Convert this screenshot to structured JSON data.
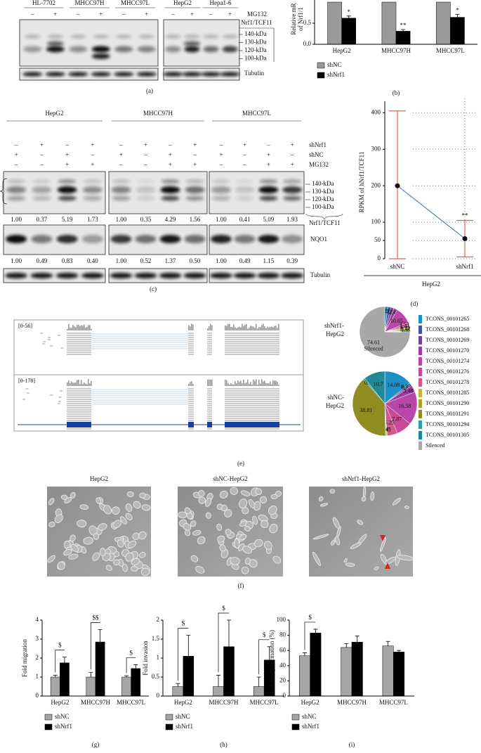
{
  "panel_a": {
    "cell_lines": [
      "HL-7702",
      "MHCC97H",
      "MHCC97L",
      "HepG2",
      "Hepa1-6"
    ],
    "mg132_signs": [
      "–",
      "+",
      "–",
      "+",
      "–",
      "+",
      "–",
      "+",
      "–",
      "+"
    ],
    "mg132_label": "MG132",
    "protein": "Nrf1/TCF11",
    "sizes": [
      "140-kDa",
      "130-kDa",
      "120-kDa",
      "100-kDa"
    ],
    "loading": "Tubulin",
    "panel": "(a)"
  },
  "panel_c": {
    "groups": [
      "HepG2",
      "MHCC97H",
      "MHCC97L"
    ],
    "rows": [
      {
        "label": "shNrf1",
        "signs": [
          "–",
          "+",
          "–",
          "+",
          "–",
          "+",
          "–",
          "+",
          "–",
          "+",
          "–",
          "+"
        ]
      },
      {
        "label": "shNC",
        "signs": [
          "+",
          "–",
          "+",
          "–",
          "+",
          "–",
          "+",
          "–",
          "+",
          "–",
          "+",
          "–"
        ]
      },
      {
        "label": "MG132",
        "signs": [
          "–",
          "–",
          "+",
          "+",
          "–",
          "–",
          "+",
          "+",
          "–",
          "–",
          "+",
          "+"
        ]
      }
    ],
    "protein": "Nrf1/TCF11",
    "sizes": [
      "140-kDa",
      "130-kDa",
      "120-kDa",
      "100-kDa"
    ],
    "protein_values": [
      "1.00",
      "0.37",
      "5.19",
      "1.73",
      "1.00",
      "0.35",
      "4.29",
      "1.56",
      "1.00",
      "0.41",
      "5.09",
      "1.93"
    ],
    "second_protein": "NQO1",
    "second_values": [
      "1.00",
      "0.49",
      "0.83",
      "0.40",
      "1.00",
      "0.52",
      "1.37",
      "0.50",
      "1.00",
      "0.49",
      "1.15",
      "0.39"
    ],
    "loading": "Tubulin",
    "panel": "(c)"
  },
  "panel_d": {
    "panel": "(d)"
  },
  "panel_e": {
    "tracks": [
      "[0-56]",
      "[0-178]"
    ],
    "panel": "(e)"
  },
  "panel_f": {
    "images": [
      "HepG2",
      "shNC-HepG2",
      "shNrf1-HepG2"
    ],
    "panel": "(f)"
  },
  "chart_data": [
    {
      "type": "bar",
      "panel": "(b)",
      "ylabel": [
        "Relative mR",
        "of Nrf1/1"
      ],
      "categories": [
        "HepG2",
        "MHCC97H",
        "MHCC97L"
      ],
      "series": [
        {
          "name": "shNC",
          "color": "#9a9a9a",
          "values": [
            1.0,
            1.0,
            1.0
          ]
        },
        {
          "name": "shNrf1",
          "color": "#000000",
          "values": [
            0.62,
            0.31,
            0.64
          ],
          "errors": [
            0.05,
            0.04,
            0.07
          ],
          "annotations": [
            "*",
            "**",
            "*"
          ]
        }
      ],
      "ylim": [
        0,
        1.2
      ],
      "yticks": [
        {
          "value": 0,
          "label": "0.0"
        },
        0.5
      ],
      "legend": "bottom-left"
    },
    {
      "type": "dot",
      "ylabel": "RPKM of hNrf1/TCF11",
      "categories": [
        "shNC",
        "shNrf1"
      ],
      "group": "HepG2",
      "values": [
        200,
        55
      ],
      "errors": [
        205,
        50
      ],
      "color": "#4a6fc4",
      "error_color": "#e06060",
      "annotations": [
        null,
        "**"
      ],
      "ylim": [
        0,
        420
      ],
      "yticks": [
        0,
        50,
        100,
        200,
        300,
        400
      ],
      "grid": true
    },
    {
      "type": "pie",
      "categories": [
        "TCONS_00101265",
        "TCONS_00101268",
        "TCONS_00101269",
        "TCONS_00101270",
        "TCONS_00101274",
        "TCONS_00101276",
        "TCONS_00101278",
        "TCONS_00101285",
        "TCONS_00101290",
        "TCONS_00101291",
        "TCONS_00101294",
        "TCONS_00101305",
        "Silenced"
      ],
      "colors": [
        "#1e90c8",
        "#4b4fa8",
        "#7a3fa0",
        "#9b3d9e",
        "#b847a8",
        "#c94a96",
        "#d05a8c",
        "#c7b43a",
        "#a8a22a",
        "#8f8c22",
        "#2aa0a8",
        "#1f8a96",
        "#a8a8a8"
      ],
      "series": [
        {
          "name": [
            "shNrf1-",
            "HepG2"
          ],
          "values": [
            1.95,
            2.01,
            1.85,
            2.45,
            10.65,
            1.52,
            1.41,
            0.92,
            0.77,
            0.91,
            0.45,
            0.5,
            74.61
          ]
        },
        {
          "name": [
            "shNC-",
            "HepG2"
          ],
          "values": [
            14.08,
            0.73,
            0.84,
            3.48,
            16.58,
            7.87,
            5.25,
            0.41,
            0.45,
            38.81,
            0.8,
            10.7,
            0
          ]
        }
      ]
    },
    {
      "type": "bar",
      "panel": "(g)",
      "ylabel": "Fold migration",
      "categories": [
        "HepG2",
        "MHCC97H",
        "MHCC97L"
      ],
      "series": [
        {
          "name": "shNC",
          "color": "#a6a6a6",
          "values": [
            1.0,
            1.0,
            1.0
          ],
          "errors": [
            0.1,
            0.25,
            0.07
          ]
        },
        {
          "name": "shNrf1",
          "color": "#000000",
          "values": [
            1.75,
            2.85,
            1.45
          ],
          "errors": [
            0.3,
            0.65,
            0.2
          ]
        }
      ],
      "brackets": [
        "$",
        "$$",
        "$"
      ],
      "ylim": [
        0,
        4
      ],
      "yticks": [
        0,
        1,
        2,
        3,
        4
      ],
      "legend": "bottom-left"
    },
    {
      "type": "bar",
      "panel": "(h)",
      "ylabel": "Fold invasion",
      "categories": [
        "HepG2",
        "MHCC97H",
        "MHCC97L"
      ],
      "series": [
        {
          "name": "shNC",
          "color": "#a6a6a6",
          "values": [
            0.25,
            0.25,
            0.25
          ],
          "errors": [
            0.08,
            0.3,
            0.25
          ]
        },
        {
          "name": "shNrf1",
          "color": "#000000",
          "values": [
            1.05,
            1.3,
            0.95
          ],
          "errors": [
            0.55,
            0.7,
            0.35
          ]
        }
      ],
      "brackets": [
        "$",
        "$",
        "$"
      ],
      "ylim": [
        0,
        2
      ],
      "yticks": [
        0,
        0.5,
        1,
        1.5,
        2
      ],
      "legend": "bottom-left"
    },
    {
      "type": "bar",
      "panel": "(i)",
      "ylabel": "Colony formation (%)",
      "categories": [
        "HepG2",
        "MHCC97H",
        "MHCC97L"
      ],
      "series": [
        {
          "name": "shNC",
          "color": "#a6a6a6",
          "values": [
            53,
            64,
            66
          ],
          "errors": [
            4,
            5,
            6
          ]
        },
        {
          "name": "shNrf1",
          "color": "#000000",
          "values": [
            83,
            71,
            58
          ],
          "errors": [
            5,
            8,
            2
          ]
        }
      ],
      "brackets": [
        "$",
        null,
        null
      ],
      "ylim": [
        0,
        100
      ],
      "yticks": [
        0,
        20,
        40,
        60,
        80,
        100
      ],
      "legend": "bottom-left"
    }
  ]
}
